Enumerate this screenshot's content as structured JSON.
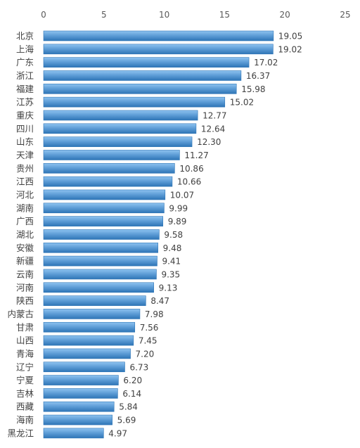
{
  "chart_data": {
    "type": "bar",
    "orientation": "horizontal",
    "xlim": [
      0,
      25
    ],
    "x_ticks": [
      "0",
      "5",
      "10",
      "15",
      "20",
      "25"
    ],
    "grid": false,
    "legend": "none",
    "bar_color": "#5B9BD5",
    "bar_color_light": "#8EC3F0",
    "bar_color_dark": "#2E75B6",
    "categories": [
      "北京",
      "上海",
      "广东",
      "浙江",
      "福建",
      "江苏",
      "重庆",
      "四川",
      "山东",
      "天津",
      "贵州",
      "江西",
      "河北",
      "湖南",
      "广西",
      "湖北",
      "安徽",
      "新疆",
      "云南",
      "河南",
      "陕西",
      "内蒙古",
      "甘肃",
      "山西",
      "青海",
      "辽宁",
      "宁夏",
      "吉林",
      "西藏",
      "海南",
      "黑龙江"
    ],
    "values": [
      19.05,
      19.02,
      17.02,
      16.37,
      15.98,
      15.02,
      12.77,
      12.64,
      12.3,
      11.27,
      10.86,
      10.66,
      10.07,
      9.99,
      9.89,
      9.58,
      9.48,
      9.41,
      9.35,
      9.13,
      8.47,
      7.98,
      7.56,
      7.45,
      7.2,
      6.73,
      6.2,
      6.14,
      5.84,
      5.69,
      4.97
    ],
    "value_labels": [
      "19.05",
      "19.02",
      "17.02",
      "16.37",
      "15.98",
      "15.02",
      "12.77",
      "12.64",
      "12.30",
      "11.27",
      "10.86",
      "10.66",
      "10.07",
      "9.99",
      "9.89",
      "9.58",
      "9.48",
      "9.41",
      "9.35",
      "9.13",
      "8.47",
      "7.98",
      "7.56",
      "7.45",
      "7.20",
      "6.73",
      "6.20",
      "6.14",
      "5.84",
      "5.69",
      "4.97"
    ]
  }
}
